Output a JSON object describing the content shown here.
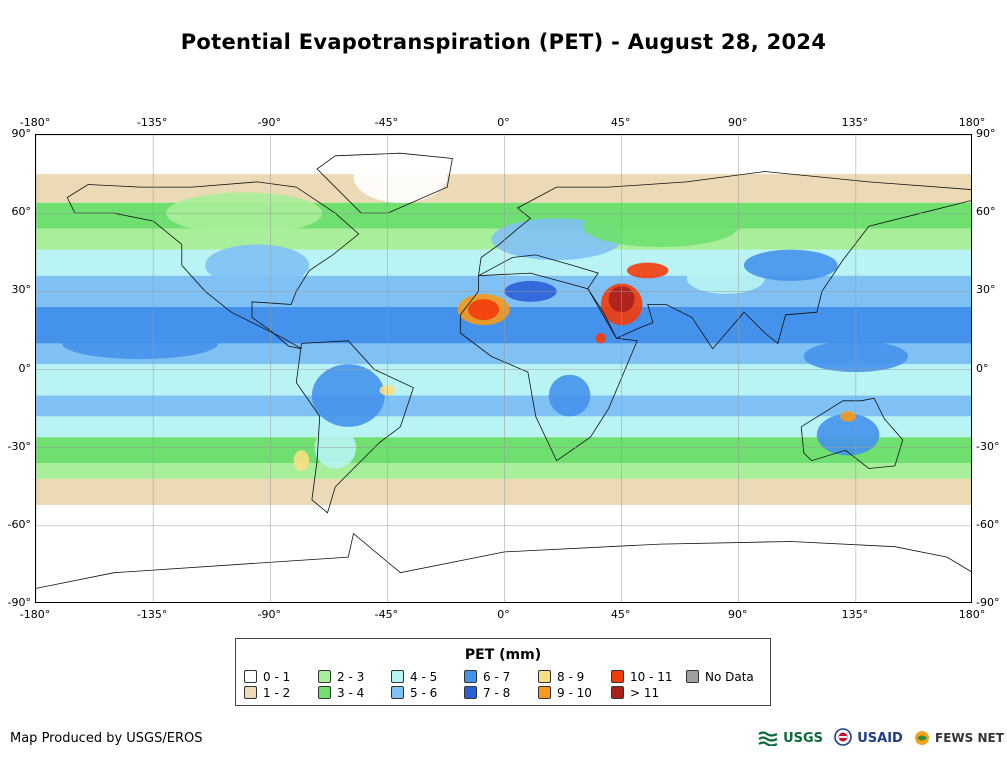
{
  "title": "Potential Evapotranspiration (PET) - August 28, 2024",
  "axes": {
    "lon_labels": [
      "-180°",
      "-135°",
      "-90°",
      "-45°",
      "0°",
      "45°",
      "90°",
      "135°",
      "180°"
    ],
    "lat_labels": [
      "90°",
      "60°",
      "30°",
      "0°",
      "-30°",
      "-60°",
      "-90°"
    ]
  },
  "legend": {
    "title": "PET (mm)",
    "items": [
      {
        "label": "0 - 1",
        "color": "#ffffff"
      },
      {
        "label": "1 - 2",
        "color": "#ecd9b6"
      },
      {
        "label": "2 - 3",
        "color": "#a9ee9a"
      },
      {
        "label": "3 - 4",
        "color": "#6fe070"
      },
      {
        "label": "4 - 5",
        "color": "#b9f3f3"
      },
      {
        "label": "5 - 6",
        "color": "#7fc1f5"
      },
      {
        "label": "6 - 7",
        "color": "#4592ec"
      },
      {
        "label": "7 - 8",
        "color": "#2a5fd8"
      },
      {
        "label": "8 - 9",
        "color": "#f8df84"
      },
      {
        "label": "9 - 10",
        "color": "#f79a18"
      },
      {
        "label": "10 - 11",
        "color": "#f33c0c"
      },
      {
        "label": "> 11",
        "color": "#a8201c"
      },
      {
        "label": "No Data",
        "color": "#a0a0a0"
      }
    ]
  },
  "footer": {
    "producer": "Map Produced by USGS/EROS",
    "logos": [
      "USGS",
      "USAID",
      "FEWS NET"
    ]
  }
}
